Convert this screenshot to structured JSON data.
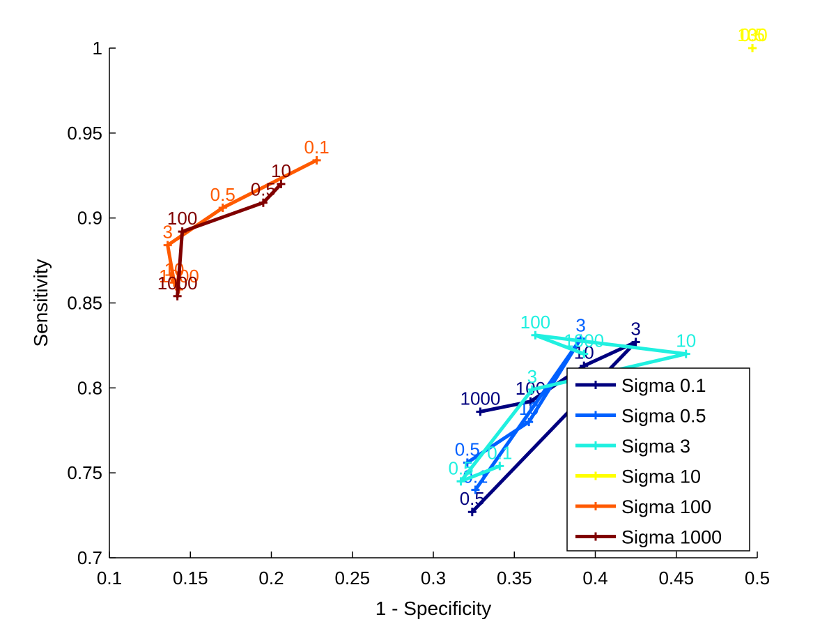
{
  "chart_data": {
    "type": "line",
    "title": "",
    "xlabel": "1 - Specificity",
    "ylabel": "Sensitivity",
    "xlim": [
      0.1,
      0.5
    ],
    "ylim": [
      0.7,
      1.0
    ],
    "xticks": [
      "0.1",
      "0.15",
      "0.2",
      "0.25",
      "0.3",
      "0.35",
      "0.4",
      "0.45",
      "0.5"
    ],
    "yticks": [
      "0.7",
      "0.75",
      "0.8",
      "0.85",
      "0.9",
      "0.95",
      "1"
    ],
    "grid": false,
    "legend_position": "bottom-right",
    "series": [
      {
        "name": "Sigma 0.1",
        "color": "#00007f",
        "points": [
          {
            "x": 0.324,
            "y": 0.727,
            "label": "0.5"
          },
          {
            "x": 0.425,
            "y": 0.827,
            "label": "3"
          },
          {
            "x": 0.393,
            "y": 0.813,
            "label": "10"
          },
          {
            "x": 0.36,
            "y": 0.792,
            "label": "100"
          },
          {
            "x": 0.329,
            "y": 0.786,
            "label": "1000"
          }
        ]
      },
      {
        "name": "Sigma 0.5",
        "color": "#0060ff",
        "points": [
          {
            "x": 0.326,
            "y": 0.74,
            "label": "0.1"
          },
          {
            "x": 0.391,
            "y": 0.829,
            "label": "3"
          },
          {
            "x": 0.359,
            "y": 0.78,
            "label": "10"
          },
          {
            "x": 0.321,
            "y": 0.756,
            "label": "0.5"
          }
        ]
      },
      {
        "name": "Sigma 3",
        "color": "#20f0e0",
        "points": [
          {
            "x": 0.341,
            "y": 0.754,
            "label": "0.1"
          },
          {
            "x": 0.317,
            "y": 0.745,
            "label": "0.5"
          },
          {
            "x": 0.361,
            "y": 0.799,
            "label": "3"
          },
          {
            "x": 0.456,
            "y": 0.82,
            "label": "10"
          },
          {
            "x": 0.363,
            "y": 0.831,
            "label": "100"
          },
          {
            "x": 0.393,
            "y": 0.82,
            "label": "1000"
          }
        ]
      },
      {
        "name": "Sigma 10",
        "color": "#ffff00",
        "points": [
          {
            "x": 0.497,
            "y": 1.0,
            "label": "3"
          },
          {
            "x": 0.497,
            "y": 1.0,
            "label": "0.5"
          },
          {
            "x": 0.497,
            "y": 1.0,
            "label": "100"
          }
        ]
      },
      {
        "name": "Sigma 100",
        "color": "#ff5a00",
        "points": [
          {
            "x": 0.228,
            "y": 0.934,
            "label": "0.1"
          },
          {
            "x": 0.17,
            "y": 0.906,
            "label": "0.5"
          },
          {
            "x": 0.136,
            "y": 0.884,
            "label": "3"
          },
          {
            "x": 0.14,
            "y": 0.862,
            "label": "10"
          },
          {
            "x": 0.143,
            "y": 0.858,
            "label": "1000"
          }
        ]
      },
      {
        "name": "Sigma 1000",
        "color": "#800000",
        "points": [
          {
            "x": 0.206,
            "y": 0.92,
            "label": "10"
          },
          {
            "x": 0.195,
            "y": 0.909,
            "label": "0.5"
          },
          {
            "x": 0.145,
            "y": 0.892,
            "label": "100"
          },
          {
            "x": 0.142,
            "y": 0.854,
            "label": "1000"
          }
        ]
      }
    ]
  }
}
